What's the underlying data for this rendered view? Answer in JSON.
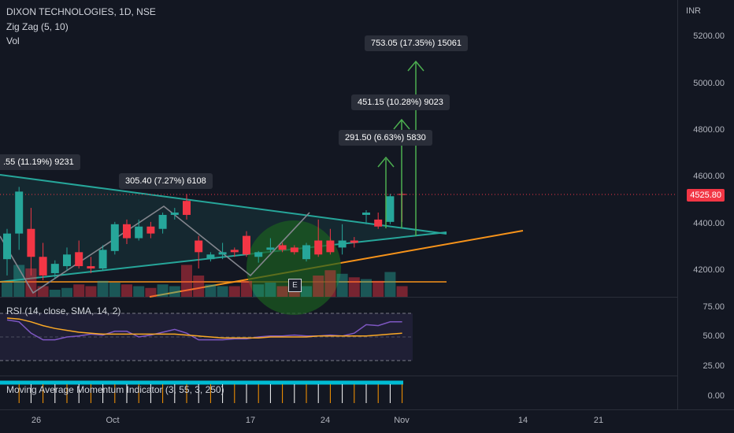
{
  "header": {
    "symbol_title": "DIXON TECHNOLOGIES, 1D, NSE",
    "indicator_zigzag": "Zig Zag (5, 10)",
    "indicator_vol": "Vol",
    "currency": "INR"
  },
  "price_axis": {
    "ticks": [
      "5200.00",
      "5000.00",
      "4800.00",
      "4600.00",
      "4400.00",
      "4200.00"
    ],
    "last_price": "4525.80"
  },
  "rsi_panel": {
    "label": "RSI (14, close, SMA, 14, 2)",
    "ticks": [
      "75.00",
      "50.00",
      "25.00"
    ]
  },
  "momentum_panel": {
    "label": "Moving Average Momentum Indicator (3, 55, 3, 250)",
    "ticks": [
      "0.00"
    ]
  },
  "time_axis": {
    "ticks": [
      "26",
      "Oct",
      "17",
      "24",
      "Nov",
      "14",
      "21"
    ]
  },
  "callouts": [
    {
      "text": ".55 (11.19%) 9231"
    },
    {
      "text": "305.40 (7.27%) 6108"
    },
    {
      "text": "291.50 (6.63%) 5830"
    },
    {
      "text": "451.15 (10.28%) 9023"
    },
    {
      "text": "753.05 (17.35%) 15061"
    }
  ],
  "earnings_marker": "E",
  "colors": {
    "up": "#26a69a",
    "down": "#f23645",
    "trendline": "#26a69a",
    "support": "#f7931a",
    "zigzag": "#8bc34a",
    "rsi": "#7e57c2",
    "rsi_ma": "#f9a825",
    "momentum": "#00bcd4"
  },
  "chart_data": {
    "type": "candlestick",
    "ylim": [
      4150,
      5300
    ],
    "candles": [
      {
        "o": 4250,
        "h": 4380,
        "l": 4180,
        "c": 4360
      },
      {
        "o": 4360,
        "h": 4560,
        "l": 4290,
        "c": 4540
      },
      {
        "o": 4380,
        "h": 4470,
        "l": 4180,
        "c": 4260
      },
      {
        "o": 4260,
        "h": 4320,
        "l": 4160,
        "c": 4180
      },
      {
        "o": 4190,
        "h": 4245,
        "l": 4165,
        "c": 4230
      },
      {
        "o": 4220,
        "h": 4300,
        "l": 4200,
        "c": 4270
      },
      {
        "o": 4280,
        "h": 4330,
        "l": 4210,
        "c": 4220
      },
      {
        "o": 4220,
        "h": 4260,
        "l": 4190,
        "c": 4210
      },
      {
        "o": 4210,
        "h": 4310,
        "l": 4200,
        "c": 4290
      },
      {
        "o": 4285,
        "h": 4410,
        "l": 4270,
        "c": 4400
      },
      {
        "o": 4400,
        "h": 4420,
        "l": 4315,
        "c": 4340
      },
      {
        "o": 4340,
        "h": 4420,
        "l": 4330,
        "c": 4390
      },
      {
        "o": 4390,
        "h": 4410,
        "l": 4340,
        "c": 4360
      },
      {
        "o": 4380,
        "h": 4450,
        "l": 4360,
        "c": 4440
      },
      {
        "o": 4440,
        "h": 4470,
        "l": 4420,
        "c": 4450
      },
      {
        "o": 4500,
        "h": 4530,
        "l": 4420,
        "c": 4440
      },
      {
        "o": 4330,
        "h": 4350,
        "l": 4210,
        "c": 4280
      },
      {
        "o": 4250,
        "h": 4280,
        "l": 4240,
        "c": 4270
      },
      {
        "o": 4270,
        "h": 4320,
        "l": 4250,
        "c": 4280
      },
      {
        "o": 4290,
        "h": 4300,
        "l": 4260,
        "c": 4280
      },
      {
        "o": 4350,
        "h": 4370,
        "l": 4260,
        "c": 4270
      },
      {
        "o": 4260,
        "h": 4285,
        "l": 4235,
        "c": 4280
      },
      {
        "o": 4290,
        "h": 4340,
        "l": 4280,
        "c": 4300
      },
      {
        "o": 4310,
        "h": 4320,
        "l": 4280,
        "c": 4290
      },
      {
        "o": 4300,
        "h": 4310,
        "l": 4270,
        "c": 4280
      },
      {
        "o": 4250,
        "h": 4320,
        "l": 4240,
        "c": 4310
      },
      {
        "o": 4330,
        "h": 4420,
        "l": 4260,
        "c": 4270
      },
      {
        "o": 4330,
        "h": 4380,
        "l": 4270,
        "c": 4280
      },
      {
        "o": 4300,
        "h": 4400,
        "l": 4270,
        "c": 4330
      },
      {
        "o": 4330,
        "h": 4345,
        "l": 4300,
        "c": 4320
      },
      {
        "o": 4440,
        "h": 4460,
        "l": 4400,
        "c": 4450
      },
      {
        "o": 4420,
        "h": 4450,
        "l": 4380,
        "c": 4390
      },
      {
        "o": 4410,
        "h": 4530,
        "l": 4400,
        "c": 4520
      },
      {
        "o": 4530,
        "h": 4540,
        "l": 4410,
        "c": 4525.8
      }
    ],
    "volume": [
      0.4,
      0.9,
      0.8,
      0.3,
      0.2,
      0.25,
      0.35,
      0.3,
      0.45,
      0.4,
      0.35,
      0.3,
      0.25,
      0.35,
      0.3,
      0.9,
      0.6,
      0.35,
      0.3,
      0.3,
      0.45,
      0.35,
      0.4,
      0.3,
      0.35,
      0.3,
      0.6,
      0.75,
      0.65,
      0.55,
      0.5,
      0.45,
      0.7,
      0.3
    ],
    "rsi": [
      68,
      66,
      54,
      47,
      47,
      50,
      51,
      53,
      52,
      56,
      56,
      50,
      52,
      55,
      58,
      54,
      47,
      47,
      47,
      48,
      48,
      50,
      51,
      51,
      52,
      51,
      51,
      52,
      51,
      54,
      63,
      62,
      66,
      66
    ],
    "rsi_ma": [
      70,
      69,
      66,
      62,
      59,
      57,
      55,
      54,
      53,
      53,
      53,
      53,
      53,
      53,
      53,
      52,
      51,
      50,
      49,
      49,
      49,
      49,
      50,
      50,
      50,
      50,
      51,
      51,
      51,
      51,
      51,
      52,
      53,
      54
    ],
    "momentum_up": true
  }
}
